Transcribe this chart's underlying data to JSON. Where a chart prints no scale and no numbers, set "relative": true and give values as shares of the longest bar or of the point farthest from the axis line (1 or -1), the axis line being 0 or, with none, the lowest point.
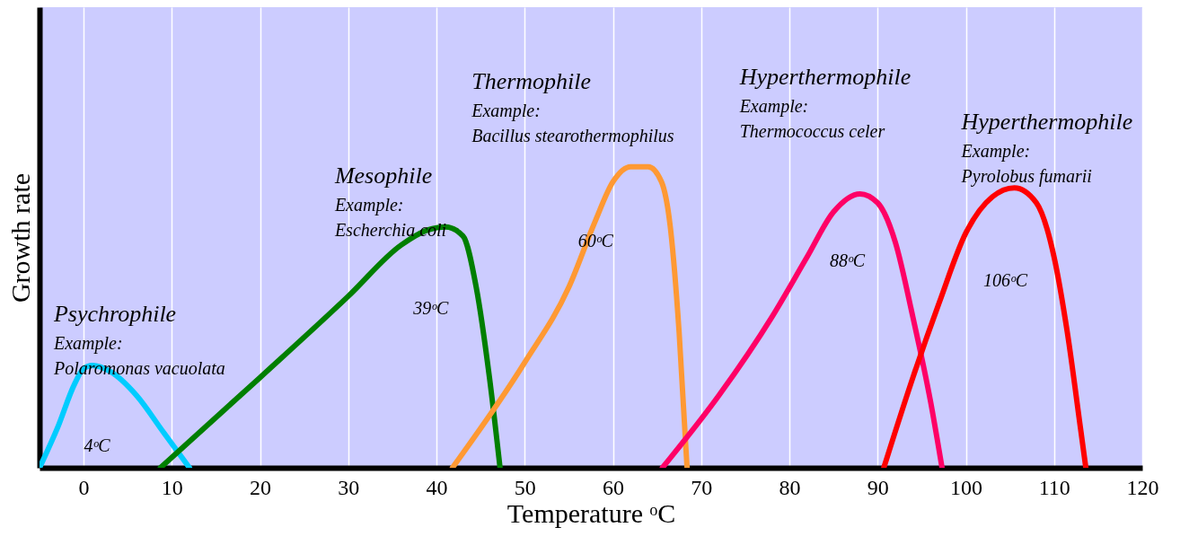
{
  "chart_data": {
    "type": "line",
    "relative": true,
    "xlabel": "Temperature ᵒC",
    "ylabel": "Growth rate",
    "xlim": [
      -5,
      120
    ],
    "xticks": [
      0,
      10,
      20,
      30,
      40,
      50,
      60,
      70,
      80,
      90,
      100,
      110,
      120
    ],
    "grid": "x",
    "series": [
      {
        "color": "#00ccff",
        "x": [
          -5,
          -3,
          -1,
          0,
          1,
          3,
          6,
          9,
          12
        ],
        "values": [
          0,
          0.13,
          0.28,
          0.33,
          0.34,
          0.32,
          0.24,
          0.12,
          0
        ]
      },
      {
        "color": "#007f00",
        "x": [
          8.7,
          20,
          30,
          36,
          39,
          41,
          43,
          44.5,
          46,
          47.2
        ],
        "values": [
          0,
          0.3,
          0.57,
          0.74,
          0.79,
          0.8,
          0.77,
          0.6,
          0.3,
          0
        ]
      },
      {
        "color": "#ff9933",
        "x": [
          41.8,
          50,
          55,
          58,
          60,
          62,
          64,
          65.5,
          66.5,
          67.5,
          68.4
        ],
        "values": [
          0,
          0.35,
          0.6,
          0.82,
          0.95,
          1,
          1,
          0.95,
          0.8,
          0.45,
          0
        ]
      },
      {
        "color": "#ff0066",
        "x": [
          65.6,
          72,
          78,
          82,
          85,
          88,
          90,
          92,
          94,
          96,
          97.3
        ],
        "values": [
          0,
          0.24,
          0.5,
          0.7,
          0.85,
          0.91,
          0.88,
          0.75,
          0.5,
          0.22,
          0
        ]
      },
      {
        "color": "#ff0000",
        "x": [
          90.7,
          94,
          97,
          100,
          103,
          105.5,
          108,
          110,
          111.5,
          113,
          113.6
        ],
        "values": [
          0,
          0.3,
          0.55,
          0.78,
          0.9,
          0.93,
          0.88,
          0.7,
          0.45,
          0.13,
          0
        ]
      }
    ],
    "annotations": [
      "Psychrophile",
      "Example:",
      "Polaromonas vacuolata",
      "4ᵒC",
      "Mesophile",
      "Example:",
      "Escherchia coli",
      "39ᵒC",
      "Thermophile",
      "Example:",
      "Bacillus stearothermophilus",
      "60ᵒC",
      "Hyperthermophile",
      "Example:",
      "Thermococcus celer",
      "88ᵒC",
      "Hyperthermophile",
      "Example:",
      "Pyrolobus fumarii",
      "106ᵒC"
    ]
  }
}
